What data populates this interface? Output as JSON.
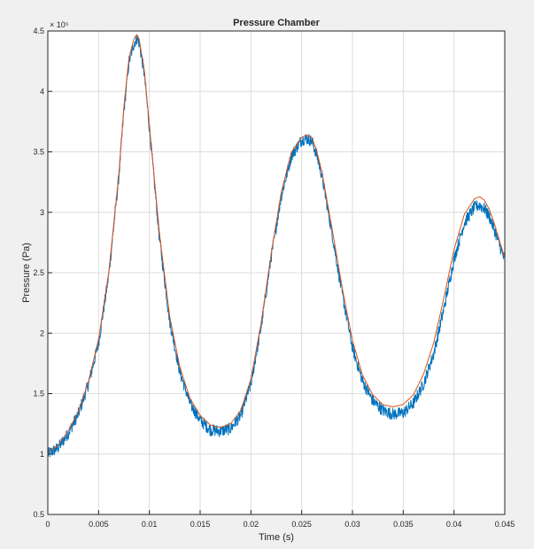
{
  "chart_data": {
    "type": "line",
    "title": "Pressure Chamber",
    "xlabel": "Time (s)",
    "ylabel": "Pressure (Pa)",
    "xlim": [
      0,
      0.045
    ],
    "ylim": [
      50000,
      450000
    ],
    "x_ticks": [
      0,
      0.005,
      0.01,
      0.015,
      0.02,
      0.025,
      0.03,
      0.035,
      0.04,
      0.045
    ],
    "x_tick_labels": [
      "0",
      "0.005",
      "0.01",
      "0.015",
      "0.02",
      "0.025",
      "0.03",
      "0.035",
      "0.04",
      "0.045"
    ],
    "y_ticks": [
      50000,
      100000,
      150000,
      200000,
      250000,
      300000,
      350000,
      400000,
      450000
    ],
    "y_tick_labels": [
      "0.5",
      "1",
      "1.5",
      "2",
      "2.5",
      "3",
      "3.5",
      "4",
      "4.5"
    ],
    "y_exponent_label": "× 10⁵",
    "grid": true,
    "colors": {
      "measured": "#0072bd",
      "fit": "#d95319"
    },
    "series": [
      {
        "style": "noisy",
        "x": [
          0,
          0.001,
          0.002,
          0.003,
          0.004,
          0.005,
          0.006,
          0.007,
          0.0075,
          0.008,
          0.0085,
          0.0088,
          0.009,
          0.0095,
          0.01,
          0.011,
          0.012,
          0.013,
          0.014,
          0.015,
          0.016,
          0.017,
          0.018,
          0.019,
          0.02,
          0.021,
          0.022,
          0.023,
          0.024,
          0.025,
          0.0255,
          0.026,
          0.0265,
          0.027,
          0.028,
          0.029,
          0.03,
          0.031,
          0.032,
          0.033,
          0.034,
          0.035,
          0.036,
          0.037,
          0.038,
          0.039,
          0.04,
          0.041,
          0.042,
          0.0425,
          0.043,
          0.0435,
          0.044,
          0.045
        ],
        "y": [
          100000,
          105000,
          117000,
          133000,
          158000,
          192000,
          248000,
          330000,
          385000,
          425000,
          440000,
          444000,
          440000,
          415000,
          370000,
          278000,
          210000,
          168000,
          142000,
          128000,
          120000,
          119000,
          121000,
          132000,
          158000,
          205000,
          263000,
          314000,
          347000,
          360000,
          361000,
          359000,
          347000,
          330000,
          282000,
          232000,
          188000,
          160000,
          144000,
          136000,
          133000,
          134000,
          142000,
          158000,
          183000,
          220000,
          261000,
          291000,
          304000,
          306000,
          303000,
          296000,
          285000,
          260000
        ]
      },
      {
        "style": "smooth",
        "x": [
          0,
          0.001,
          0.002,
          0.003,
          0.004,
          0.005,
          0.006,
          0.007,
          0.0075,
          0.008,
          0.0085,
          0.0088,
          0.009,
          0.0095,
          0.01,
          0.011,
          0.012,
          0.013,
          0.014,
          0.015,
          0.016,
          0.017,
          0.018,
          0.019,
          0.02,
          0.021,
          0.022,
          0.023,
          0.024,
          0.025,
          0.0255,
          0.026,
          0.0265,
          0.027,
          0.028,
          0.029,
          0.03,
          0.031,
          0.032,
          0.033,
          0.034,
          0.035,
          0.036,
          0.037,
          0.038,
          0.039,
          0.04,
          0.041,
          0.042,
          0.0425,
          0.043,
          0.0435,
          0.044,
          0.045
        ],
        "y": [
          102000,
          107000,
          119000,
          135000,
          160000,
          195000,
          250000,
          332000,
          388000,
          428000,
          444000,
          447000,
          443000,
          418000,
          372000,
          282000,
          214000,
          172000,
          146000,
          132000,
          124000,
          122000,
          125000,
          136000,
          162000,
          208000,
          266000,
          317000,
          350000,
          362000,
          364000,
          362000,
          350000,
          333000,
          286000,
          237000,
          194000,
          165000,
          149000,
          141000,
          139000,
          141000,
          149000,
          166000,
          192000,
          229000,
          269000,
          298000,
          311000,
          313000,
          310000,
          302000,
          290000,
          262000
        ]
      }
    ]
  }
}
